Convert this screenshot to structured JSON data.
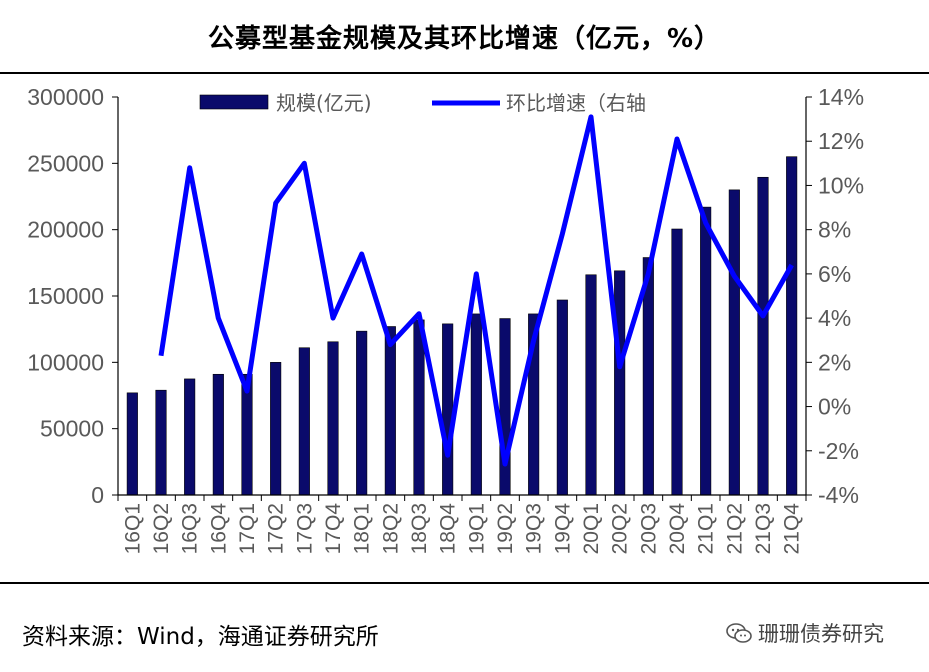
{
  "title": "公募型基金规模及其环比增速（亿元，%）",
  "source": "资料来源：Wind，海通证券研究所",
  "watermark": "珊珊债券研究",
  "colors": {
    "bar": "#0A0A6B",
    "line": "#0000FF",
    "axis": "#000000",
    "tick_text": "#595959"
  },
  "chart_data": {
    "type": "bar+line",
    "categories": [
      "16Q1",
      "16Q2",
      "16Q3",
      "16Q4",
      "17Q1",
      "17Q2",
      "17Q3",
      "17Q4",
      "18Q1",
      "18Q2",
      "18Q3",
      "18Q4",
      "19Q1",
      "19Q2",
      "19Q3",
      "19Q4",
      "20Q1",
      "20Q2",
      "20Q3",
      "20Q4",
      "21Q1",
      "21Q2",
      "21Q3",
      "21Q4"
    ],
    "series": [
      {
        "name": "规模(亿元)",
        "type": "bar",
        "axis": "left",
        "values": [
          77000,
          79000,
          87500,
          91000,
          91000,
          100000,
          111000,
          115500,
          123500,
          127000,
          132000,
          129000,
          136500,
          133000,
          136500,
          147000,
          166000,
          169000,
          179000,
          200500,
          217000,
          230000,
          239500,
          255000
        ]
      },
      {
        "name": "环比增速（右轴",
        "type": "line",
        "axis": "right",
        "values": [
          null,
          2.3,
          10.8,
          4.0,
          0.7,
          9.2,
          11.0,
          4.0,
          6.9,
          2.8,
          4.2,
          -2.2,
          6.0,
          -2.6,
          3.0,
          7.8,
          13.1,
          1.8,
          6.0,
          12.1,
          8.3,
          5.9,
          4.1,
          6.4
        ]
      }
    ],
    "y_left": {
      "ylim": [
        0,
        300000
      ],
      "ticks": [
        "0",
        "50000",
        "100000",
        "150000",
        "200000",
        "250000",
        "300000"
      ]
    },
    "y_right": {
      "ylim": [
        -4,
        14
      ],
      "ticks": [
        "-4%",
        "-2%",
        "0%",
        "2%",
        "4%",
        "6%",
        "8%",
        "10%",
        "12%",
        "14%"
      ]
    },
    "legend_position": "top-center",
    "grid": false
  }
}
